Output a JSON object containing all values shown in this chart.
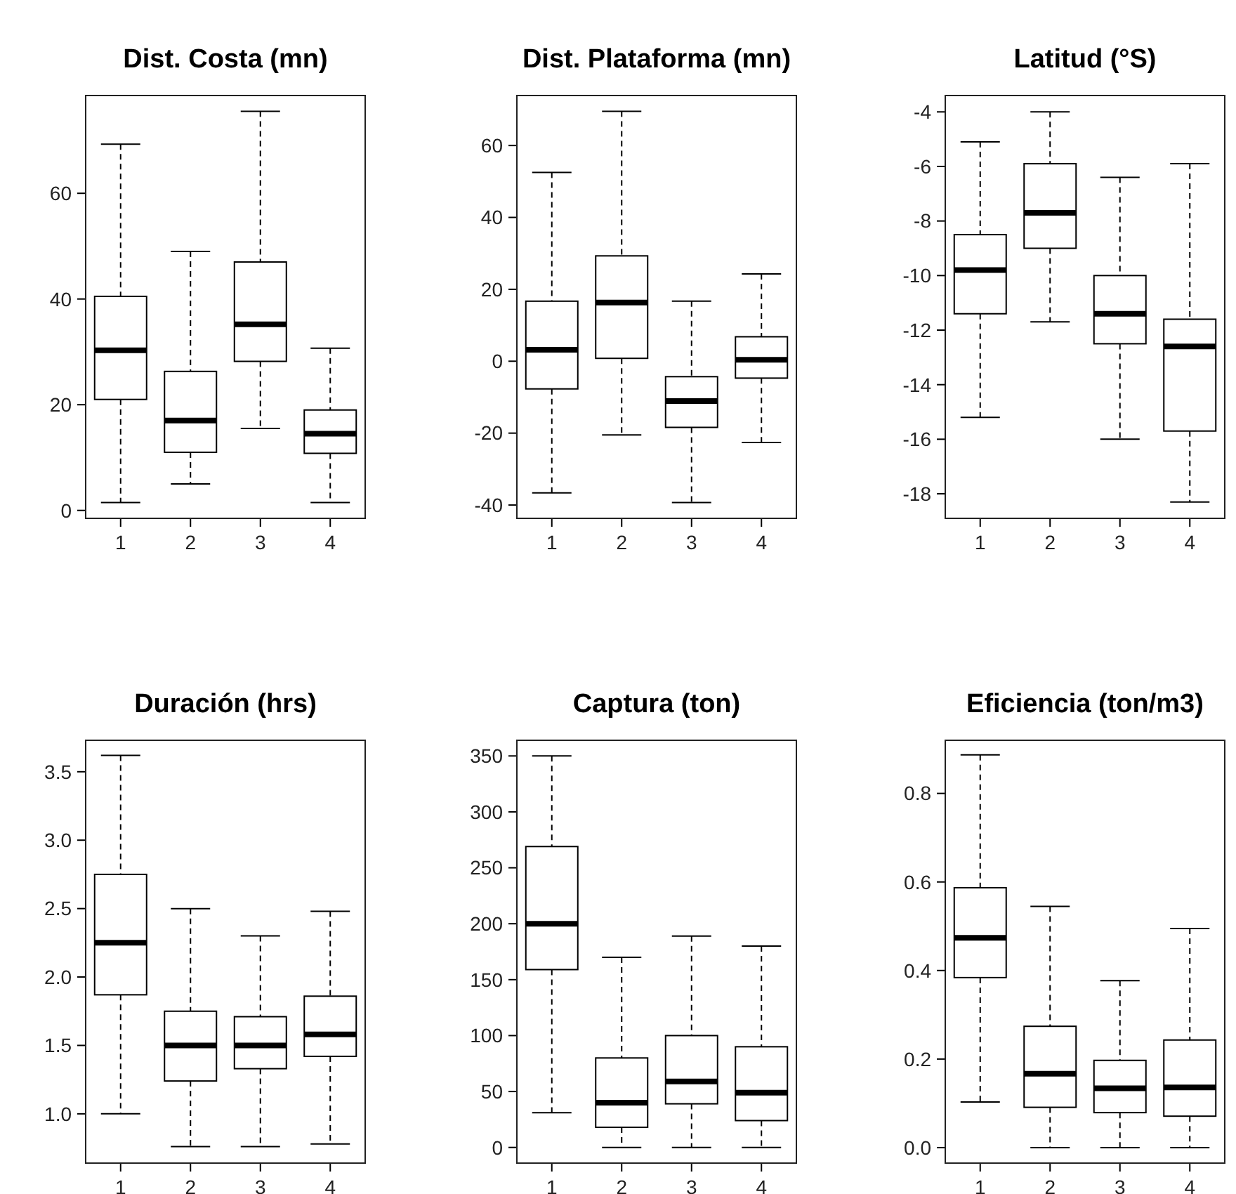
{
  "chart_data": [
    {
      "type": "box",
      "title": "Dist. Costa (mn)",
      "categories": [
        "1",
        "2",
        "3",
        "4"
      ],
      "ylim": [
        -1.5,
        78.5
      ],
      "yticks": [
        0,
        20,
        40,
        60
      ],
      "line_style": "dashed",
      "boxes": [
        {
          "low": 1.5,
          "q1": 21,
          "median": 30.3,
          "q3": 40.5,
          "high": 69.3
        },
        {
          "low": 5,
          "q1": 11,
          "median": 17,
          "q3": 26.3,
          "high": 49
        },
        {
          "low": 15.5,
          "q1": 28.2,
          "median": 35.2,
          "q3": 47,
          "high": 75.5
        },
        {
          "low": 1.5,
          "q1": 10.8,
          "median": 14.5,
          "q3": 19,
          "high": 30.7
        }
      ]
    },
    {
      "type": "box",
      "title": "Dist. Plataforma (mn)",
      "categories": [
        "1",
        "2",
        "3",
        "4"
      ],
      "ylim": [
        -43.7,
        73.9
      ],
      "yticks": [
        -40,
        -20,
        0,
        20,
        40,
        60
      ],
      "line_style": "dashed",
      "boxes": [
        {
          "low": -36.6,
          "q1": -7.7,
          "median": 3.2,
          "q3": 16.7,
          "high": 52.5
        },
        {
          "low": -20.5,
          "q1": 0.8,
          "median": 16.3,
          "q3": 29.3,
          "high": 69.5
        },
        {
          "low": -39.3,
          "q1": -18.4,
          "median": -11.1,
          "q3": -4.3,
          "high": 16.7
        },
        {
          "low": -22.6,
          "q1": -4.7,
          "median": 0.4,
          "q3": 6.8,
          "high": 24.3
        }
      ]
    },
    {
      "type": "box",
      "title": "Latitud (°S)",
      "categories": [
        "1",
        "2",
        "3",
        "4"
      ],
      "ylim": [
        -18.9,
        -3.4
      ],
      "yticks": [
        -18,
        -16,
        -14,
        -12,
        -10,
        -8,
        -6,
        -4
      ],
      "line_style": "dashed",
      "boxes": [
        {
          "low": -15.2,
          "q1": -11.4,
          "median": -9.8,
          "q3": -8.5,
          "high": -5.1
        },
        {
          "low": -11.7,
          "q1": -9.0,
          "median": -7.7,
          "q3": -5.9,
          "high": -4.0
        },
        {
          "low": -16.0,
          "q1": -12.5,
          "median": -11.4,
          "q3": -10.0,
          "high": -6.4
        },
        {
          "low": -18.3,
          "q1": -15.7,
          "median": -12.6,
          "q3": -11.6,
          "high": -5.9
        }
      ]
    },
    {
      "type": "box",
      "title": "Duración (hrs)",
      "categories": [
        "1",
        "2",
        "3",
        "4"
      ],
      "ylim": [
        0.64,
        3.73
      ],
      "yticks": [
        {
          "value": 1,
          "label": "1.0"
        },
        1.5,
        {
          "value": 2,
          "label": "2.0"
        },
        2.5,
        {
          "value": 3,
          "label": "3.0"
        },
        3.5
      ],
      "line_style": "dashed",
      "boxes": [
        {
          "low": 1.0,
          "q1": 1.87,
          "median": 2.25,
          "q3": 2.75,
          "high": 3.62
        },
        {
          "low": 0.76,
          "q1": 1.24,
          "median": 1.5,
          "q3": 1.75,
          "high": 2.5
        },
        {
          "low": 0.76,
          "q1": 1.33,
          "median": 1.5,
          "q3": 1.71,
          "high": 2.3
        },
        {
          "low": 0.78,
          "q1": 1.42,
          "median": 1.58,
          "q3": 1.86,
          "high": 2.48
        }
      ]
    },
    {
      "type": "box",
      "title": "Captura (ton)",
      "categories": [
        "1",
        "2",
        "3",
        "4"
      ],
      "ylim": [
        -14,
        364
      ],
      "yticks": [
        0,
        50,
        100,
        150,
        200,
        250,
        300,
        350
      ],
      "line_style": "dashed",
      "boxes": [
        {
          "low": 31,
          "q1": 159,
          "median": 200,
          "q3": 269,
          "high": 350
        },
        {
          "low": 0,
          "q1": 18,
          "median": 40,
          "q3": 80,
          "high": 170
        },
        {
          "low": 0,
          "q1": 39,
          "median": 59,
          "q3": 100,
          "high": 189
        },
        {
          "low": 0,
          "q1": 24,
          "median": 49,
          "q3": 90,
          "high": 180
        }
      ]
    },
    {
      "type": "box",
      "title": "Eficiencia (ton/m3)",
      "categories": [
        "1",
        "2",
        "3",
        "4"
      ],
      "ylim": [
        -0.035,
        0.92
      ],
      "yticks": [
        {
          "value": 0,
          "label": "0.0"
        },
        0.2,
        0.4,
        0.6,
        0.8
      ],
      "line_style": "dashed",
      "boxes": [
        {
          "low": 0.103,
          "q1": 0.384,
          "median": 0.474,
          "q3": 0.587,
          "high": 0.887
        },
        {
          "low": 0,
          "q1": 0.091,
          "median": 0.167,
          "q3": 0.274,
          "high": 0.545
        },
        {
          "low": 0,
          "q1": 0.079,
          "median": 0.134,
          "q3": 0.197,
          "high": 0.377
        },
        {
          "low": 0,
          "q1": 0.071,
          "median": 0.136,
          "q3": 0.243,
          "high": 0.495
        }
      ]
    }
  ]
}
